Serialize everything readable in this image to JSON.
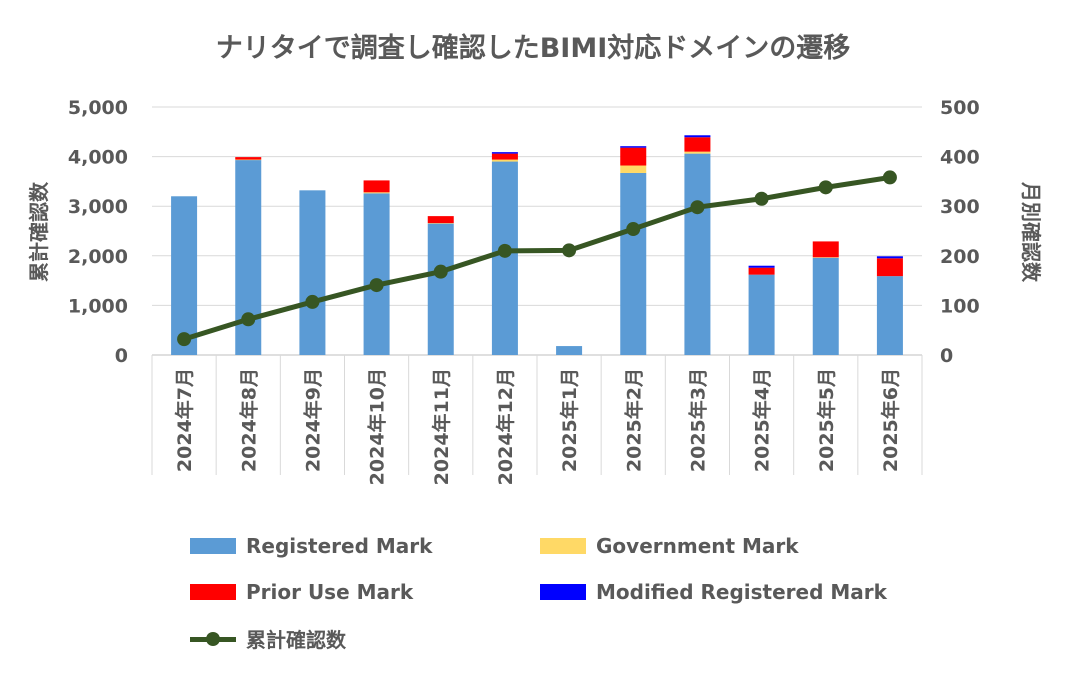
{
  "chart_data": {
    "type": "bar",
    "title": "ナリタイで調査し確認したBIMI対応ドメインの遷移",
    "categories": [
      "2024年7月",
      "2024年8月",
      "2024年9月",
      "2024年10月",
      "2024年11月",
      "2024年12月",
      "2025年1月",
      "2025年2月",
      "2025年3月",
      "2025年4月",
      "2025年5月",
      "2025年6月"
    ],
    "series": [
      {
        "name": "Registered Mark",
        "kind": "bar",
        "axis": "left",
        "color": "#5B9BD5",
        "values": [
          3200,
          3930,
          3320,
          3260,
          2650,
          3900,
          180,
          3670,
          4060,
          1620,
          1960,
          1590
        ]
      },
      {
        "name": "Government Mark",
        "kind": "bar",
        "axis": "left",
        "color": "#FFD966",
        "values": [
          0,
          10,
          0,
          20,
          10,
          40,
          0,
          150,
          40,
          0,
          10,
          0
        ]
      },
      {
        "name": "Prior Use Mark",
        "kind": "bar",
        "axis": "left",
        "color": "#FF0000",
        "values": [
          0,
          50,
          0,
          240,
          140,
          120,
          0,
          360,
          290,
          140,
          320,
          360
        ]
      },
      {
        "name": "Modified Registered Mark",
        "kind": "bar",
        "axis": "left",
        "color": "#0000FF",
        "values": [
          0,
          0,
          0,
          0,
          0,
          30,
          0,
          30,
          40,
          40,
          0,
          40
        ]
      },
      {
        "name": "累計確認数",
        "kind": "line",
        "axis": "right",
        "color": "#375623",
        "values": [
          32,
          72,
          107,
          141,
          168,
          210,
          211,
          254,
          298,
          315,
          338,
          358
        ]
      }
    ],
    "y_left": {
      "label": "累計確認数",
      "min": 0,
      "max": 5000,
      "ticks": [
        "0",
        "1,000",
        "2,000",
        "3,000",
        "4,000",
        "5,000"
      ]
    },
    "y_right": {
      "label": "月別確認数",
      "min": 0,
      "max": 500,
      "ticks": [
        "0",
        "100",
        "200",
        "300",
        "400",
        "500"
      ]
    },
    "grid": true,
    "legend_position": "bottom"
  }
}
